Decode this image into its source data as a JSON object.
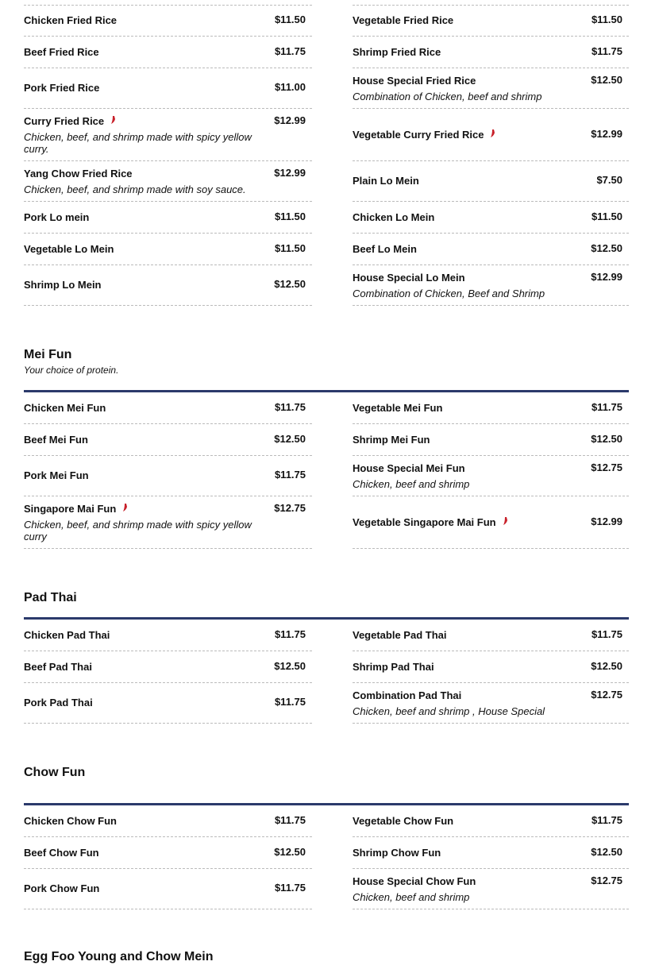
{
  "colors": {
    "rule": "#2b3a6b",
    "pepper": "#c8202a"
  },
  "sections": [
    {
      "title": "",
      "subtitle": "",
      "rows": [
        [
          {
            "name": "Chicken Fried Rice",
            "price": "$11.50"
          },
          {
            "name": "Vegetable Fried Rice",
            "price": "$11.50"
          }
        ],
        [
          {
            "name": "Beef Fried Rice",
            "price": "$11.75"
          },
          {
            "name": "Shrimp Fried Rice",
            "price": "$11.75"
          }
        ],
        [
          {
            "name": "Pork Fried Rice",
            "price": "$11.00"
          },
          {
            "name": "House Special Fried Rice",
            "price": "$12.50",
            "desc": "Combination of Chicken, beef and shrimp"
          }
        ],
        [
          {
            "name": "Curry Fried Rice",
            "price": "$12.99",
            "spicy": true,
            "desc": "Chicken, beef, and shrimp made with spicy yellow curry."
          },
          {
            "name": "Vegetable Curry Fried Rice",
            "price": "$12.99",
            "spicy": true
          }
        ],
        [
          {
            "name": "Yang Chow Fried Rice",
            "price": "$12.99",
            "desc": "Chicken, beef, and shrimp made with soy sauce."
          },
          {
            "name": "Plain Lo Mein",
            "price": "$7.50"
          }
        ],
        [
          {
            "name": "Pork Lo mein",
            "price": "$11.50"
          },
          {
            "name": "Chicken Lo Mein",
            "price": "$11.50"
          }
        ],
        [
          {
            "name": "Vegetable Lo Mein",
            "price": "$11.50"
          },
          {
            "name": "Beef Lo Mein",
            "price": "$12.50"
          }
        ],
        [
          {
            "name": "Shrimp Lo Mein",
            "price": "$12.50"
          },
          {
            "name": "House Special Lo Mein",
            "price": "$12.99",
            "desc": "Combination of Chicken, Beef and Shrimp"
          }
        ]
      ]
    },
    {
      "title": "Mei Fun",
      "subtitle": "Your choice of protein.",
      "rows": [
        [
          {
            "name": "Chicken Mei Fun",
            "price": "$11.75"
          },
          {
            "name": "Vegetable Mei Fun",
            "price": "$11.75"
          }
        ],
        [
          {
            "name": "Beef Mei Fun",
            "price": "$12.50"
          },
          {
            "name": "Shrimp Mei Fun",
            "price": "$12.50"
          }
        ],
        [
          {
            "name": "Pork Mei Fun",
            "price": "$11.75"
          },
          {
            "name": "House Special Mei Fun",
            "price": "$12.75",
            "desc": "Chicken, beef and shrimp"
          }
        ],
        [
          {
            "name": "Singapore Mai Fun",
            "price": "$12.75",
            "spicy": true,
            "desc": "Chicken, beef, and shrimp made with spicy yellow curry"
          },
          {
            "name": "Vegetable Singapore Mai Fun",
            "price": "$12.99",
            "spicy": true
          }
        ]
      ]
    },
    {
      "title": "Pad Thai",
      "subtitle": "",
      "rows": [
        [
          {
            "name": "Chicken Pad Thai",
            "price": "$11.75"
          },
          {
            "name": "Vegetable Pad Thai",
            "price": "$11.75"
          }
        ],
        [
          {
            "name": "Beef Pad Thai",
            "price": "$12.50"
          },
          {
            "name": "Shrimp Pad Thai",
            "price": "$12.50"
          }
        ],
        [
          {
            "name": "Pork Pad Thai",
            "price": "$11.75"
          },
          {
            "name": "Combination Pad Thai",
            "price": "$12.75",
            "desc": "Chicken, beef and shrimp , House Special"
          }
        ]
      ]
    },
    {
      "title": "Chow Fun",
      "subtitle": "",
      "rows": [
        [
          {
            "name": "Chicken Chow Fun",
            "price": "$11.75"
          },
          {
            "name": "Vegetable Chow Fun",
            "price": "$11.75"
          }
        ],
        [
          {
            "name": "Beef Chow Fun",
            "price": "$12.50"
          },
          {
            "name": "Shrimp Chow Fun",
            "price": "$12.50"
          }
        ],
        [
          {
            "name": "Pork Chow Fun",
            "price": "$11.75"
          },
          {
            "name": "House Special Chow Fun",
            "price": "$12.75",
            "desc": "Chicken, beef and shrimp"
          }
        ]
      ]
    },
    {
      "title": "Egg Foo Young and Chow Mein",
      "subtitle": "",
      "rows": []
    }
  ]
}
